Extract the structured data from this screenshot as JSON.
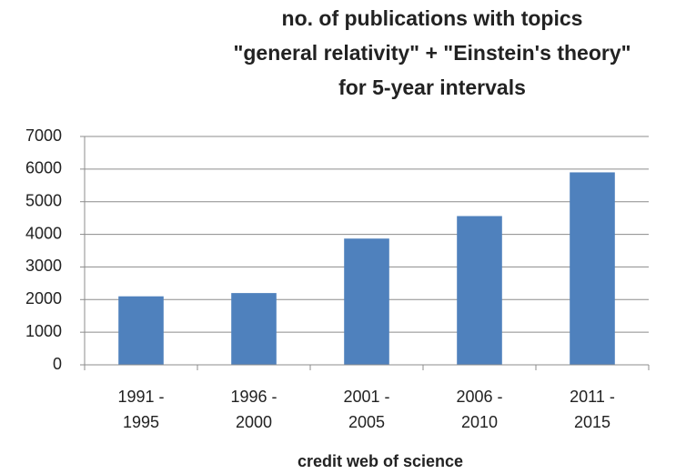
{
  "chart_data": {
    "type": "bar",
    "title": [
      "no. of publications with topics",
      "\"general relativity\" + \"Einstein's theory\"",
      "for 5-year intervals"
    ],
    "categories": [
      "1991 - 1995",
      "1996 - 2000",
      "2001 - 2005",
      "2006 - 2010",
      "2011 - 2015"
    ],
    "values": [
      2100,
      2200,
      3870,
      4560,
      5900
    ],
    "color": "#4f81bd",
    "xlabel": "credit web of science",
    "ylim": [
      0,
      7000
    ],
    "yticks": [
      0,
      1000,
      2000,
      3000,
      4000,
      5000,
      6000,
      7000
    ],
    "grid": true
  }
}
